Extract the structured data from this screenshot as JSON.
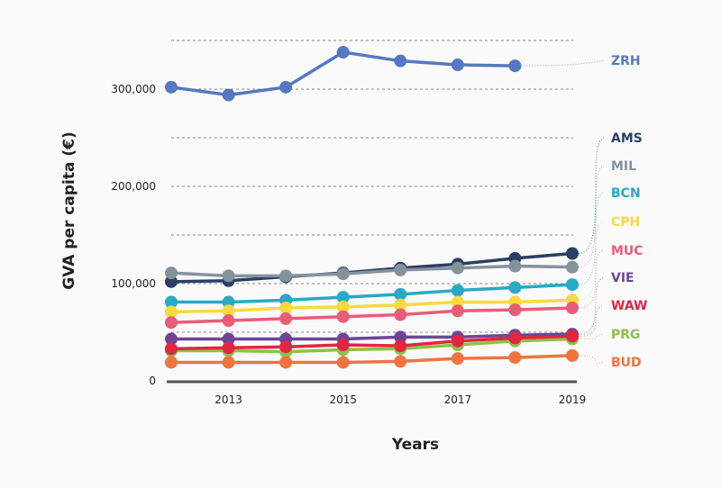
{
  "chart_data": {
    "type": "line",
    "title": "",
    "xlabel": "Years",
    "ylabel": "GVA per capita (€)",
    "ylim": [
      0,
      350000
    ],
    "xlim": [
      2012,
      2019
    ],
    "grid": true,
    "x": [
      2012,
      2013,
      2014,
      2015,
      2016,
      2017,
      2018,
      2019
    ],
    "x_ticks": [
      {
        "value": 2013,
        "label": "2013"
      },
      {
        "value": 2015,
        "label": "2015"
      },
      {
        "value": 2017,
        "label": "2017"
      },
      {
        "value": 2019,
        "label": "2019"
      }
    ],
    "y_ticks": [
      {
        "value": 0,
        "label": "0"
      },
      {
        "value": 100000,
        "label": "100,000"
      },
      {
        "value": 200000,
        "label": "200,000"
      },
      {
        "value": 300000,
        "label": "300,000"
      }
    ],
    "legend_placement": "right (direct labels)",
    "series": [
      {
        "name": "ZRH",
        "color": "#5578c0",
        "values": [
          302000,
          294000,
          302000,
          338000,
          329000,
          325000,
          324000,
          null
        ]
      },
      {
        "name": "AMS",
        "color": "#2c3e66",
        "values": [
          102000,
          103000,
          107000,
          111000,
          116000,
          120000,
          126000,
          131000
        ]
      },
      {
        "name": "MIL",
        "color": "#84929c",
        "values": [
          111000,
          108000,
          108000,
          110000,
          114000,
          116000,
          118000,
          117000
        ]
      },
      {
        "name": "BCN",
        "color": "#27aac6",
        "values": [
          81000,
          81000,
          83000,
          86000,
          89000,
          93000,
          96000,
          99000
        ]
      },
      {
        "name": "CPH",
        "color": "#f8d940",
        "values": [
          71000,
          72000,
          75000,
          76000,
          78000,
          81000,
          81000,
          83000
        ]
      },
      {
        "name": "MUC",
        "color": "#e95c78",
        "values": [
          60000,
          62000,
          64000,
          66000,
          68000,
          72000,
          73000,
          75000
        ]
      },
      {
        "name": "VIE",
        "color": "#6e4596",
        "values": [
          43000,
          43000,
          43000,
          43000,
          45000,
          45000,
          47000,
          48000
        ]
      },
      {
        "name": "PRG",
        "color": "#8cc14a",
        "values": [
          31000,
          31000,
          30000,
          32000,
          33000,
          37000,
          41000,
          43000
        ]
      },
      {
        "name": "WAW",
        "color": "#e4253f",
        "values": [
          33000,
          34000,
          35000,
          37000,
          36000,
          41000,
          44000,
          46000
        ]
      },
      {
        "name": "BUD",
        "color": "#ef7440",
        "values": [
          19000,
          19000,
          19000,
          19000,
          20000,
          23000,
          24000,
          26000
        ]
      }
    ]
  }
}
